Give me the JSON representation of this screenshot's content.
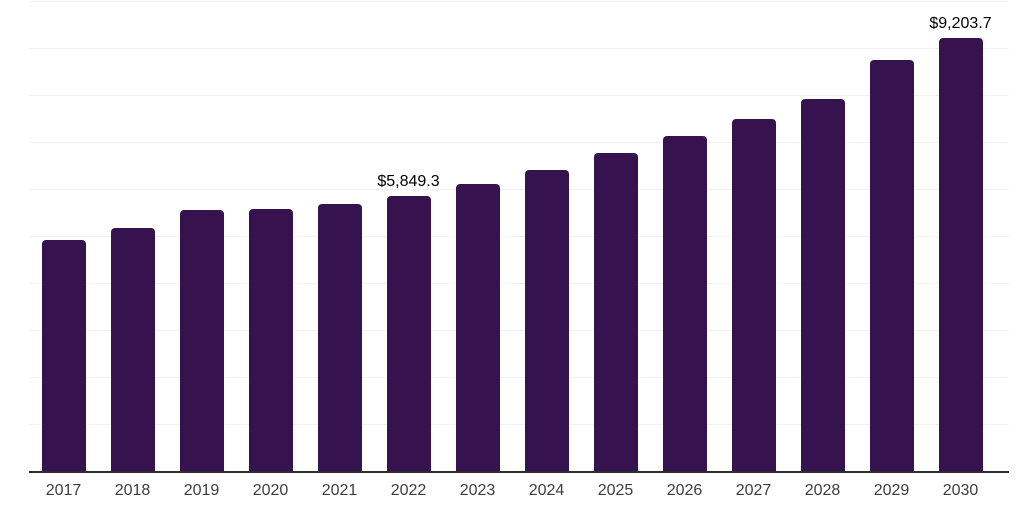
{
  "chart_data": {
    "type": "bar",
    "title": "",
    "xlabel": "",
    "ylabel": "",
    "categories": [
      "2017",
      "2018",
      "2019",
      "2020",
      "2021",
      "2022",
      "2023",
      "2024",
      "2025",
      "2026",
      "2027",
      "2028",
      "2029",
      "2030"
    ],
    "values": [
      4910,
      5170,
      5550,
      5580,
      5680,
      5849.3,
      6115,
      6400,
      6775,
      7130,
      7500,
      7915,
      8750,
      9203.7
    ],
    "data_labels": [
      {
        "category": "2022",
        "text": "$5,849.3"
      },
      {
        "category": "2030",
        "text": "$9,203.7"
      }
    ],
    "ylim": [
      0,
      10000
    ],
    "gridline_step": 1000,
    "grid": "horizontal",
    "legend": "none",
    "bar_color": "#36124E",
    "gridline_color": "#f2f2f2",
    "axis_line_color": "#2e2e2e",
    "data_label_color": "#000000",
    "tick_label_color": "#3d3d3d"
  }
}
